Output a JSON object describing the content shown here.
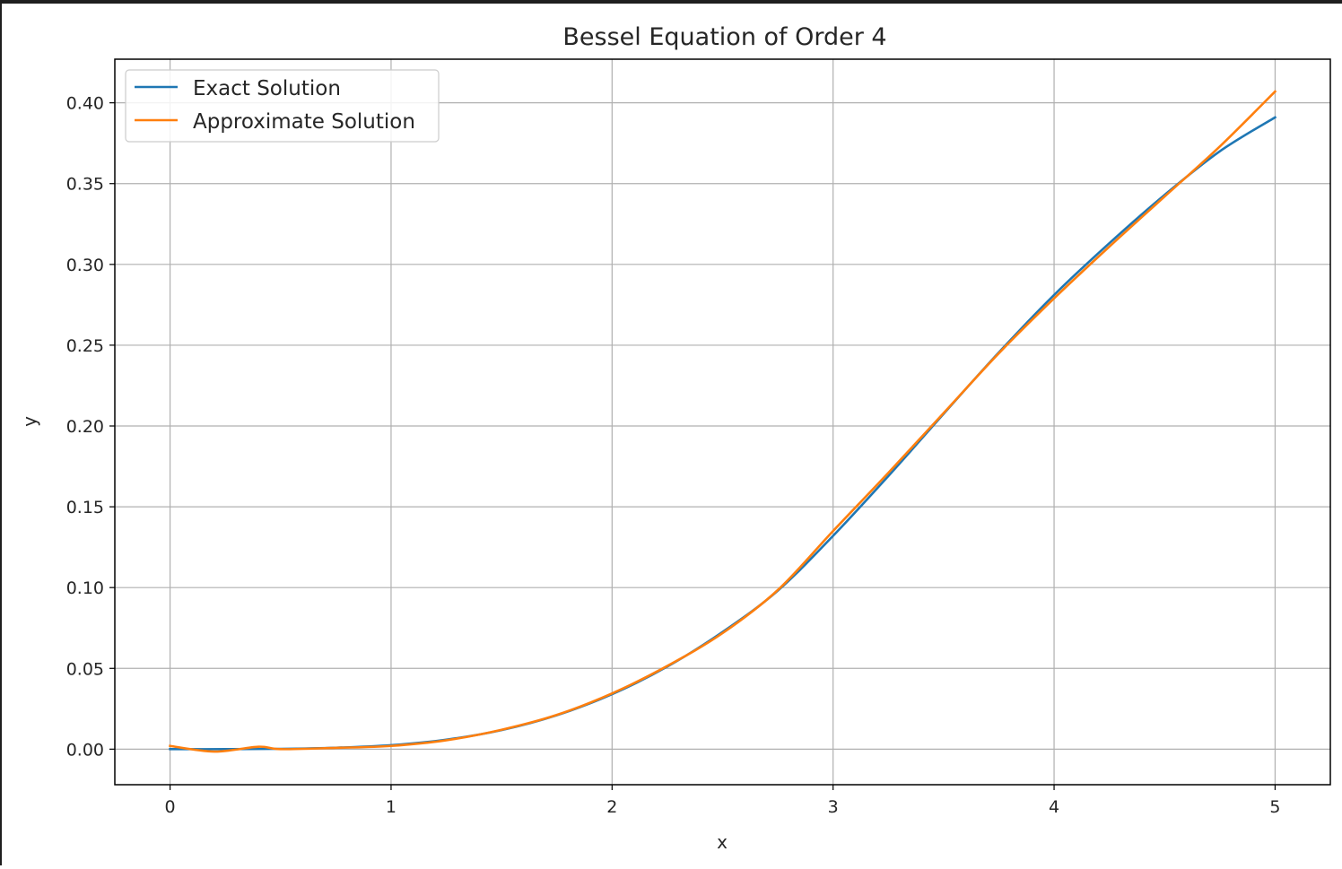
{
  "chart_data": {
    "type": "line",
    "title": "Bessel Equation of Order 4",
    "xlabel": "x",
    "ylabel": "y",
    "xlim": [
      -0.25,
      5.25
    ],
    "ylim": [
      -0.022,
      0.427
    ],
    "xticks": [
      "0",
      "1",
      "2",
      "3",
      "4",
      "5"
    ],
    "yticks": [
      "0.00",
      "0.05",
      "0.10",
      "0.15",
      "0.20",
      "0.25",
      "0.30",
      "0.35",
      "0.40"
    ],
    "grid": true,
    "legend_position": "top-left",
    "series": [
      {
        "name": "Exact Solution",
        "color": "#1f77b4",
        "x": [
          0.0,
          0.25,
          0.5,
          0.75,
          1.0,
          1.25,
          1.5,
          1.75,
          2.0,
          2.25,
          2.5,
          2.75,
          3.0,
          3.25,
          3.5,
          3.75,
          4.0,
          4.25,
          4.5,
          4.75,
          5.0
        ],
        "y": [
          0.0,
          0.0,
          0.0002,
          0.0009,
          0.0025,
          0.0059,
          0.0118,
          0.021,
          0.034,
          0.0511,
          0.0725,
          0.0981,
          0.132,
          0.169,
          0.2075,
          0.2455,
          0.2811,
          0.3131,
          0.343,
          0.37,
          0.391
        ]
      },
      {
        "name": "Approximate Solution",
        "color": "#ff7f0e",
        "x": [
          0.0,
          0.2,
          0.4,
          0.5,
          0.75,
          1.0,
          1.25,
          1.5,
          1.75,
          2.0,
          2.25,
          2.5,
          2.75,
          3.0,
          3.25,
          3.5,
          3.75,
          4.0,
          4.25,
          4.5,
          4.75,
          5.0
        ],
        "y": [
          0.002,
          -0.0015,
          0.0015,
          0.0,
          0.0008,
          0.002,
          0.0055,
          0.012,
          0.0212,
          0.0345,
          0.0515,
          0.0718,
          0.0985,
          0.135,
          0.171,
          0.208,
          0.245,
          0.279,
          0.311,
          0.342,
          0.373,
          0.407
        ]
      }
    ]
  }
}
